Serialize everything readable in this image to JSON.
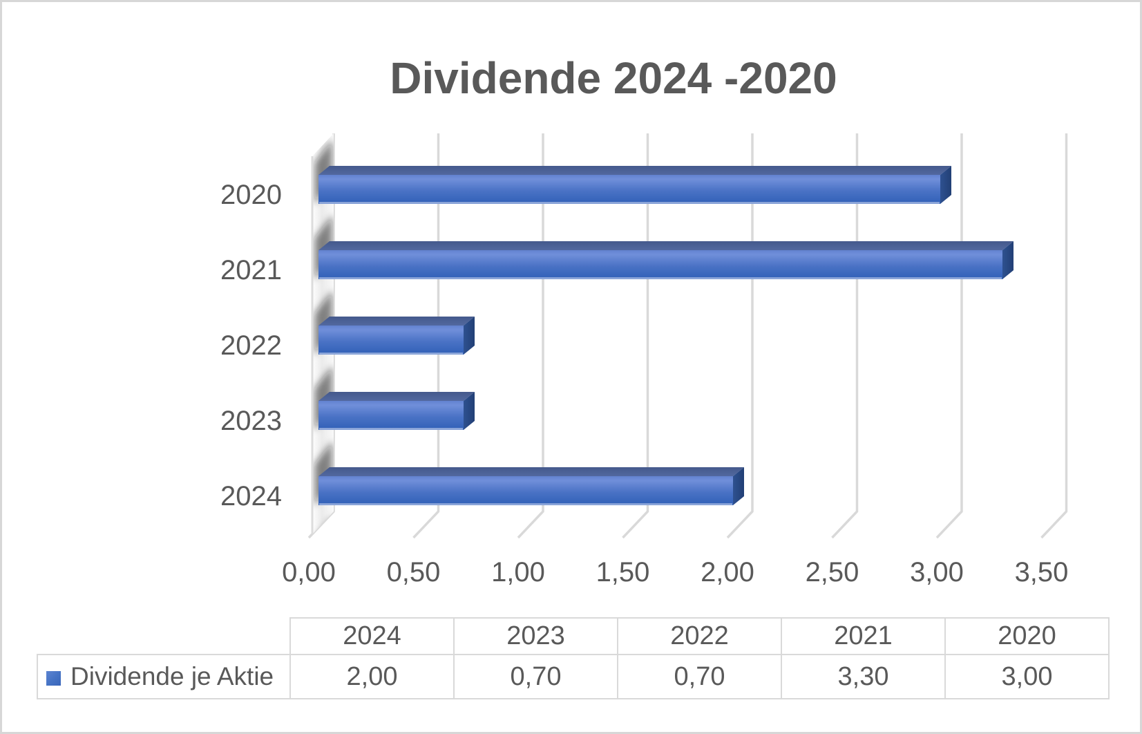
{
  "frame": {
    "background": "#ffffff",
    "border_color": "#d7d7d7"
  },
  "chart_data": {
    "type": "bar",
    "orientation": "horizontal",
    "style": "3d",
    "title": "Dividende 2024 -2020",
    "categories": [
      "2020",
      "2021",
      "2022",
      "2023",
      "2024"
    ],
    "series": [
      {
        "name": "Dividende je Aktie",
        "values": [
          3.0,
          3.3,
          0.7,
          0.7,
          2.0
        ]
      }
    ],
    "x_ticks": [
      "0,00",
      "0,50",
      "1,00",
      "1,50",
      "2,00",
      "2,50",
      "3,00",
      "3,50"
    ],
    "xlim": [
      0,
      3.5
    ],
    "tick_step": 0.5,
    "grid": true,
    "legend_position": "bottom-table",
    "colors": {
      "bar": "#4472c4",
      "bar_front_top": "#6282d0",
      "bar_front_bottom": "#3060b7",
      "bar_top_face": "#4a5f94",
      "bar_end_face": "#2a4a85",
      "grid": "#d9d9d9",
      "text": "#595959",
      "title": "#595959",
      "wall_shadow": "#1a1a1a"
    }
  },
  "table": {
    "legend_label": "Dividende je Aktie",
    "legend_marker_color": "#4472c4",
    "columns": [
      "2024",
      "2023",
      "2022",
      "2021",
      "2020"
    ],
    "rows": [
      {
        "label": "Dividende je Aktie",
        "values": [
          "2,00",
          "0,70",
          "0,70",
          "3,30",
          "3,00"
        ]
      }
    ]
  }
}
